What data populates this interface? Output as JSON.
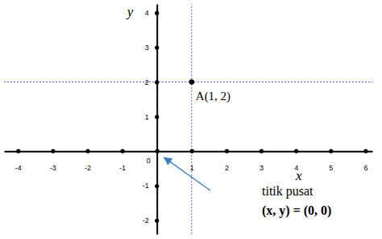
{
  "chart_data": {
    "type": "scatter",
    "x_label": "x",
    "y_label": "y",
    "x": [
      1
    ],
    "values": [
      2
    ],
    "data_labels": true,
    "value_labels": [
      "A(1, 2)"
    ],
    "marker": "circle",
    "color": "#000000",
    "xlim": [
      -4.4,
      6.2
    ],
    "ylim": [
      -2.4,
      4.25
    ],
    "xticks": [
      -4,
      -3,
      -2,
      -1,
      0,
      1,
      2,
      3,
      4,
      5,
      6
    ],
    "yticks": [
      -2,
      -1,
      1,
      2,
      3,
      4
    ],
    "annotations": [
      "titik pusat",
      "(x, y) = (0, 0)"
    ],
    "grid": false
  }
}
